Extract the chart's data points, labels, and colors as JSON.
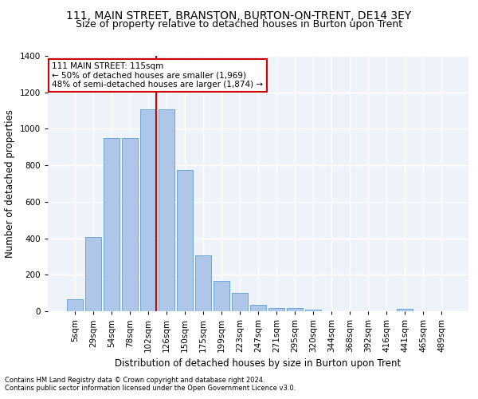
{
  "title1": "111, MAIN STREET, BRANSTON, BURTON-ON-TRENT, DE14 3EY",
  "title2": "Size of property relative to detached houses in Burton upon Trent",
  "xlabel": "Distribution of detached houses by size in Burton upon Trent",
  "ylabel": "Number of detached properties",
  "footnote1": "Contains HM Land Registry data © Crown copyright and database right 2024.",
  "footnote2": "Contains public sector information licensed under the Open Government Licence v3.0.",
  "bar_labels": [
    "5sqm",
    "29sqm",
    "54sqm",
    "78sqm",
    "102sqm",
    "126sqm",
    "150sqm",
    "175sqm",
    "199sqm",
    "223sqm",
    "247sqm",
    "271sqm",
    "295sqm",
    "320sqm",
    "344sqm",
    "368sqm",
    "392sqm",
    "416sqm",
    "441sqm",
    "465sqm",
    "489sqm"
  ],
  "bar_values": [
    65,
    405,
    950,
    950,
    1105,
    1105,
    775,
    305,
    165,
    100,
    35,
    18,
    18,
    10,
    0,
    0,
    0,
    0,
    12,
    0,
    0
  ],
  "bar_color": "#aec6e8",
  "bar_edgecolor": "#5a9fd4",
  "vline_x": 4.42,
  "vline_color": "#cc0000",
  "annotation_text": "111 MAIN STREET: 115sqm\n← 50% of detached houses are smaller (1,969)\n48% of semi-detached houses are larger (1,874) →",
  "annotation_box_facecolor": "#ffffff",
  "annotation_box_edgecolor": "#cc0000",
  "ylim_max": 1400,
  "yticks": [
    0,
    200,
    400,
    600,
    800,
    1000,
    1200,
    1400
  ],
  "bg_color": "#eef2f9",
  "grid_color": "#ffffff",
  "title1_fontsize": 10,
  "title2_fontsize": 9,
  "xlabel_fontsize": 8.5,
  "ylabel_fontsize": 8.5,
  "tick_fontsize": 7.5,
  "annot_fontsize": 7.5,
  "footnote_fontsize": 6.0
}
